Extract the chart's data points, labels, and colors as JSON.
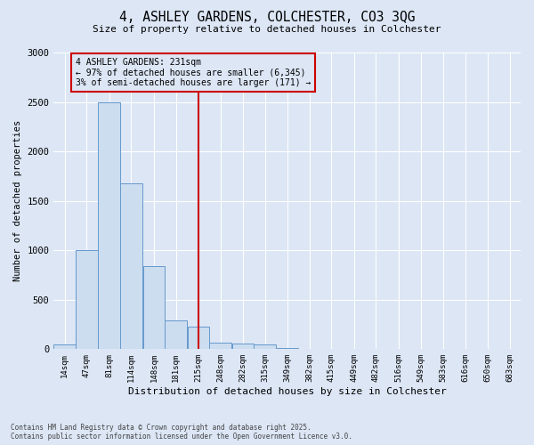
{
  "title": "4, ASHLEY GARDENS, COLCHESTER, CO3 3QG",
  "subtitle": "Size of property relative to detached houses in Colchester",
  "xlabel": "Distribution of detached houses by size in Colchester",
  "ylabel": "Number of detached properties",
  "property_size": 231,
  "property_label": "4 ASHLEY GARDENS: 231sqm",
  "annotation_line1": "← 97% of detached houses are smaller (6,345)",
  "annotation_line2": "3% of semi-detached houses are larger (171) →",
  "bar_color": "#ccddf0",
  "bar_edge_color": "#6699cc",
  "vline_color": "#cc0000",
  "annotation_box_color": "#cc0000",
  "background_color": "#dce6f5",
  "grid_color": "#ffffff",
  "footer_line1": "Contains HM Land Registry data © Crown copyright and database right 2025.",
  "footer_line2": "Contains public sector information licensed under the Open Government Licence v3.0.",
  "bins": [
    14,
    47,
    81,
    114,
    148,
    181,
    215,
    248,
    282,
    315,
    349,
    382,
    415,
    449,
    482,
    516,
    549,
    583,
    616,
    650,
    683
  ],
  "counts": [
    45,
    1000,
    2500,
    1680,
    840,
    295,
    225,
    70,
    55,
    50,
    8,
    0,
    0,
    4,
    0,
    0,
    0,
    0,
    0,
    0
  ],
  "ylim": [
    0,
    3000
  ],
  "yticks": [
    0,
    500,
    1000,
    1500,
    2000,
    2500,
    3000
  ]
}
